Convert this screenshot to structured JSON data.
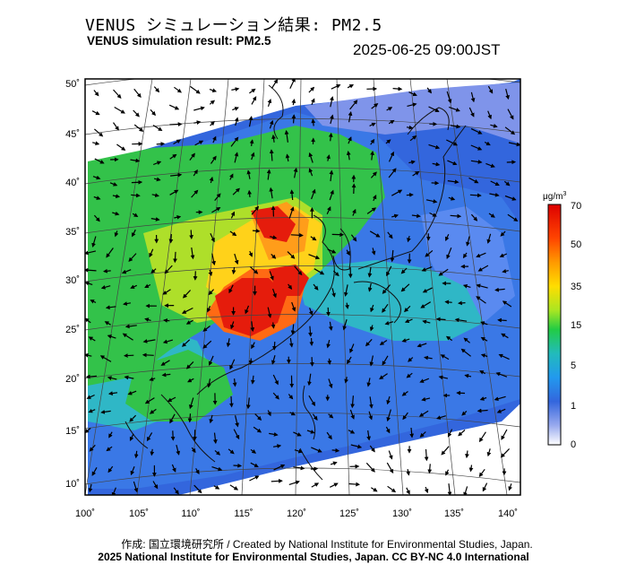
{
  "header": {
    "title_ja": "VENUS シミュレーション結果: PM2.5",
    "title_en": "VENUS simulation result: PM2.5",
    "datetime": "2025-06-25 09:00JST"
  },
  "map": {
    "lat_labels": [
      "50˚",
      "45˚",
      "40˚",
      "35˚",
      "30˚",
      "25˚",
      "20˚",
      "15˚",
      "10˚"
    ],
    "lon_labels": [
      "100˚",
      "105˚",
      "110˚",
      "115˚",
      "120˚",
      "125˚",
      "130˚",
      "135˚",
      "140˚"
    ]
  },
  "colorbar": {
    "unit": "μg/m",
    "unit_sup": "3",
    "ticks": [
      "70",
      "50",
      "35",
      "15",
      "5",
      "1",
      "0"
    ],
    "colors": [
      "#dd0000",
      "#ff6600",
      "#ffcc00",
      "#ccee22",
      "#22cc44",
      "#33bbcc",
      "#3399ee",
      "#3366dd",
      "#8899ee",
      "#ffffff"
    ]
  },
  "footer": {
    "credit_line1": "作成: 国立環境研究所 / Created by National Institute for Environmental Studies, Japan.",
    "credit_line2": "2025 National Institute for Environmental Studies, Japan. CC BY-NC 4.0 International"
  }
}
